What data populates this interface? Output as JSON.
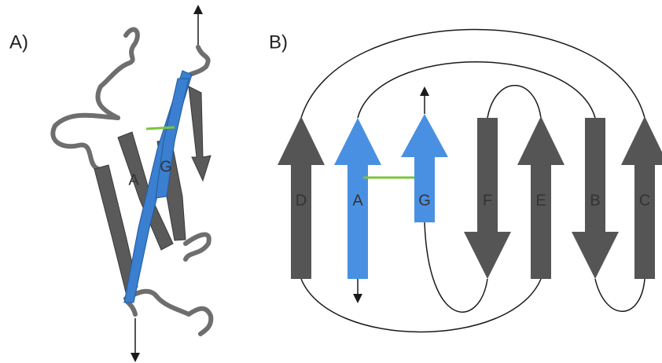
{
  "panel_a": {
    "label": "A)",
    "strands": [
      "A",
      "G"
    ]
  },
  "panel_b": {
    "label": "B)",
    "strands": [
      "D",
      "A",
      "G",
      "F",
      "E",
      "B",
      "C"
    ]
  }
}
